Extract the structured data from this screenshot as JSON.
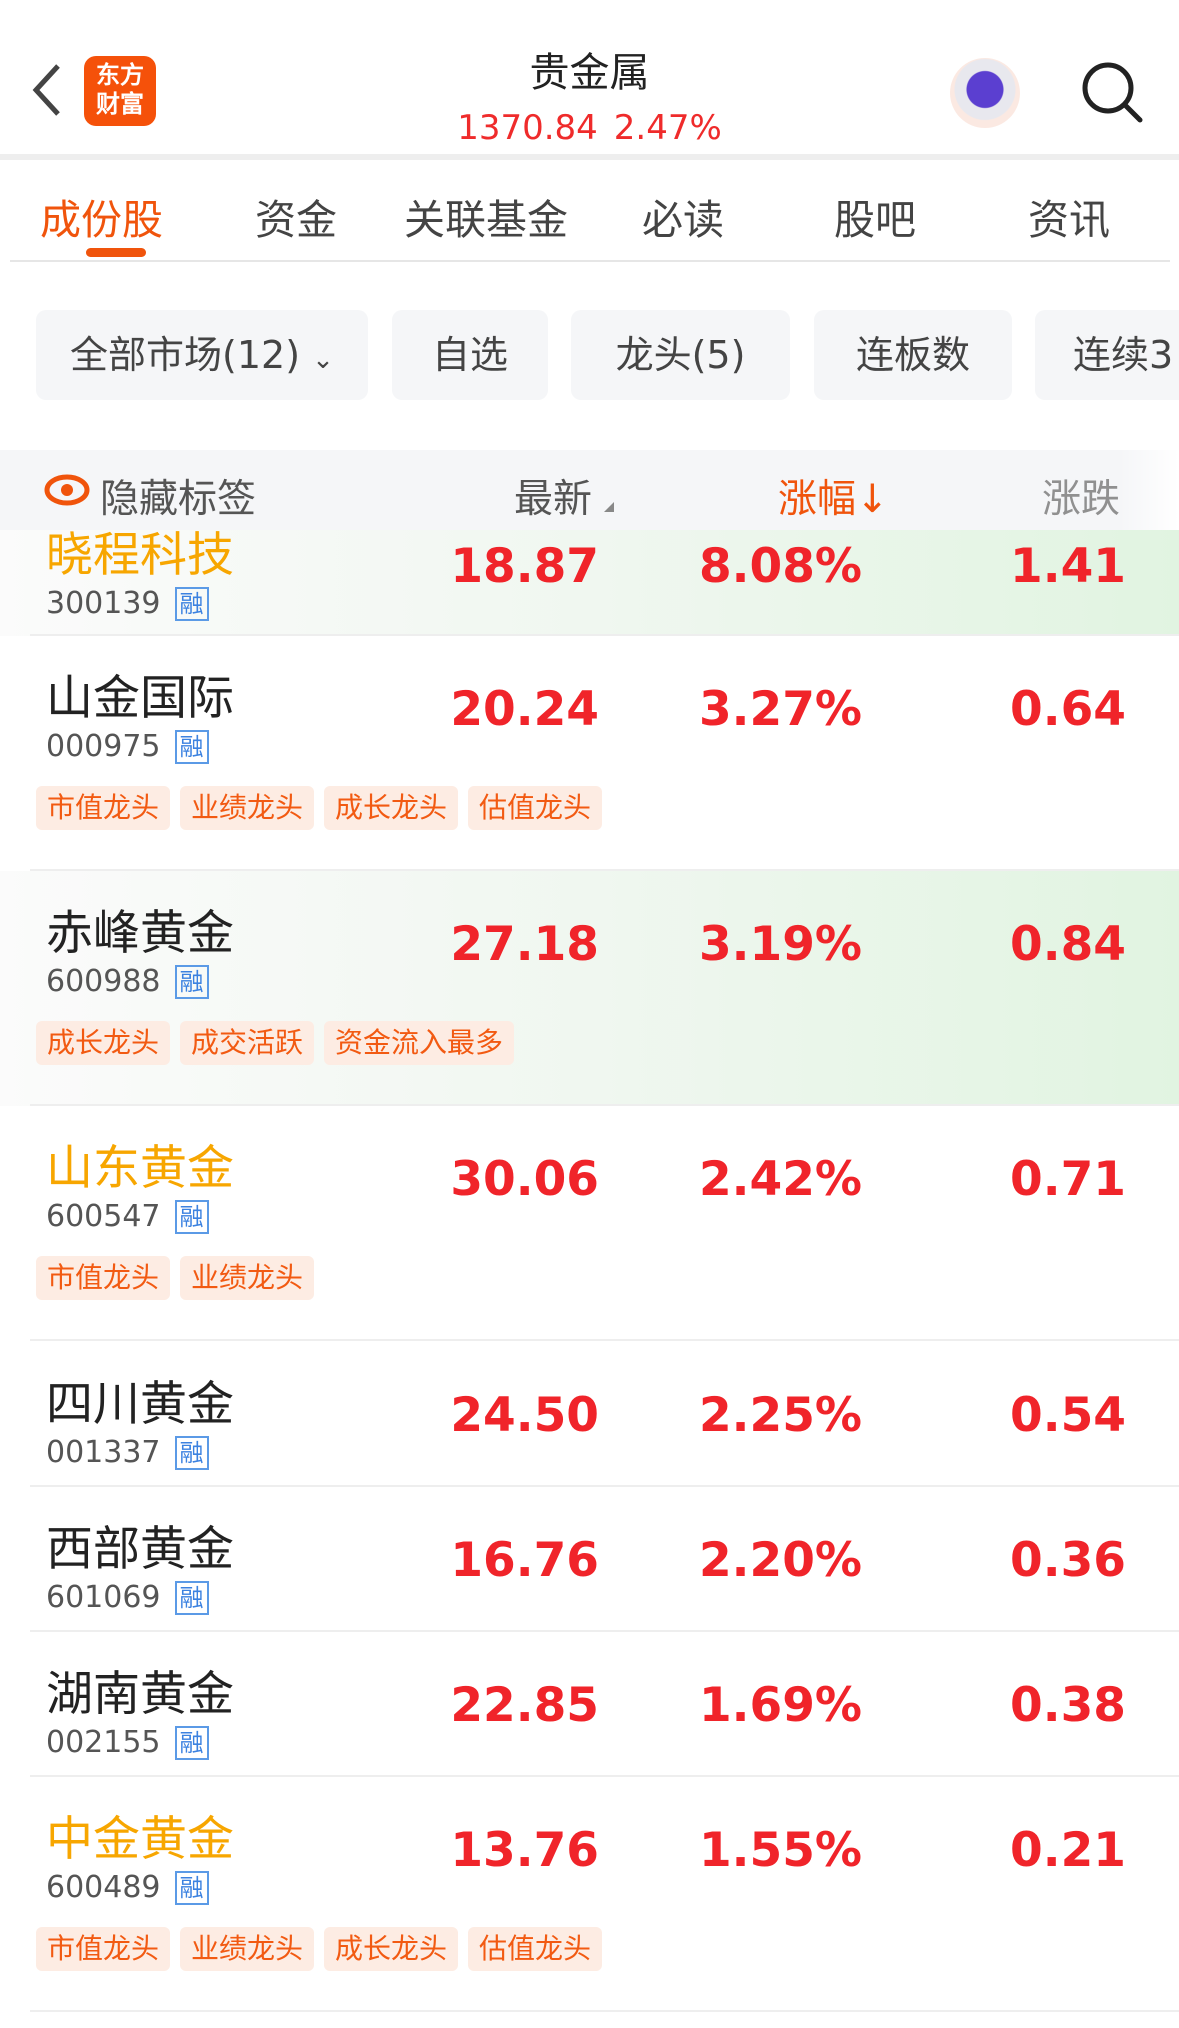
{
  "header": {
    "title": "贵金属",
    "index_value": "1370.84",
    "index_change": "2.47%",
    "logo_text": "东方财富",
    "icons": [
      "back-icon",
      "app-logo",
      "assistant-robot-icon",
      "search-icon"
    ]
  },
  "tabs": [
    {
      "label": "成份股",
      "active": true
    },
    {
      "label": "资金"
    },
    {
      "label": "关联基金"
    },
    {
      "label": "必读"
    },
    {
      "label": "股吧"
    },
    {
      "label": "资讯"
    }
  ],
  "filters": [
    "全部市场(12)",
    "自选",
    "龙头(5)",
    "连板数",
    "连续3"
  ],
  "columns": {
    "hide_tags": "隐藏标签",
    "latest": "最新",
    "change_pct": "涨幅",
    "change_pct_sort": "↓",
    "change": "涨跌"
  },
  "colors": {
    "accent": "#f0540c",
    "up": "#f0242a",
    "highlight_name": "#f7a600"
  },
  "rows": [
    {
      "name": "晓程科技",
      "code": "300139",
      "margin": "融",
      "price": "18.87",
      "pct": "8.08%",
      "chg": "1.41",
      "orange": true,
      "hl": true,
      "tags": []
    },
    {
      "name": "山金国际",
      "code": "000975",
      "margin": "融",
      "price": "20.24",
      "pct": "3.27%",
      "chg": "0.64",
      "orange": false,
      "hl": false,
      "tags": [
        "市值龙头",
        "业绩龙头",
        "成长龙头",
        "估值龙头"
      ]
    },
    {
      "name": "赤峰黄金",
      "code": "600988",
      "margin": "融",
      "price": "27.18",
      "pct": "3.19%",
      "chg": "0.84",
      "orange": false,
      "hl": true,
      "tags": [
        "成长龙头",
        "成交活跃",
        "资金流入最多"
      ]
    },
    {
      "name": "山东黄金",
      "code": "600547",
      "margin": "融",
      "price": "30.06",
      "pct": "2.42%",
      "chg": "0.71",
      "orange": true,
      "hl": false,
      "tags": [
        "市值龙头",
        "业绩龙头"
      ]
    },
    {
      "name": "四川黄金",
      "code": "001337",
      "margin": "融",
      "price": "24.50",
      "pct": "2.25%",
      "chg": "0.54",
      "orange": false,
      "hl": false,
      "tags": []
    },
    {
      "name": "西部黄金",
      "code": "601069",
      "margin": "融",
      "price": "16.76",
      "pct": "2.20%",
      "chg": "0.36",
      "orange": false,
      "hl": false,
      "tags": []
    },
    {
      "name": "湖南黄金",
      "code": "002155",
      "margin": "融",
      "price": "22.85",
      "pct": "1.69%",
      "chg": "0.38",
      "orange": false,
      "hl": false,
      "tags": []
    },
    {
      "name": "中金黄金",
      "code": "600489",
      "margin": "融",
      "price": "13.76",
      "pct": "1.55%",
      "chg": "0.21",
      "orange": true,
      "hl": false,
      "tags": [
        "市值龙头",
        "业绩龙头",
        "成长龙头",
        "估值龙头"
      ]
    }
  ]
}
